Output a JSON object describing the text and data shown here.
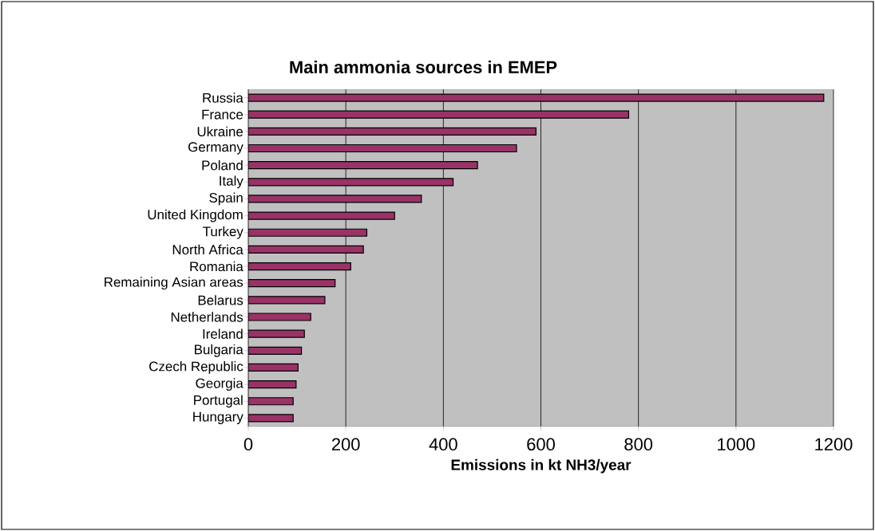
{
  "chart_data": {
    "type": "bar",
    "orientation": "horizontal",
    "title": "Main ammonia sources in EMEP",
    "xlabel": "Emissions in kt NH3/year",
    "categories": [
      "Russia",
      "France",
      "Ukraine",
      "Germany",
      "Poland",
      "Italy",
      "Spain",
      "United Kingdom",
      "Turkey",
      "North Africa",
      "Romania",
      "Remaining Asian areas",
      "Belarus",
      "Netherlands",
      "Ireland",
      "Bulgaria",
      "Czech Republic",
      "Georgia",
      "Portugal",
      "Hungary"
    ],
    "values": [
      1180,
      780,
      590,
      550,
      470,
      420,
      355,
      300,
      243,
      236,
      210,
      178,
      157,
      128,
      115,
      109,
      102,
      98,
      92,
      92
    ],
    "color": "#993366",
    "xlim": [
      0,
      1200
    ],
    "xticks": [
      0,
      200,
      400,
      600,
      800,
      1000,
      1200
    ],
    "grid": "x"
  }
}
